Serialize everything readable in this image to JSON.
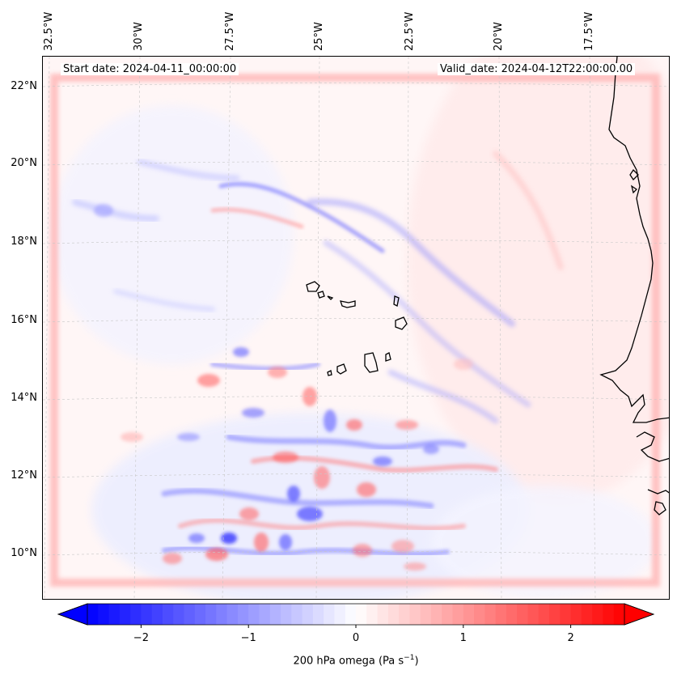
{
  "map": {
    "start_date": "Start date: 2024-04-11_00:00:00",
    "valid_date": "Valid_date: 2024-04-12T22:00:00.00",
    "longitude_labels": [
      "32.5°W",
      "30°W",
      "27.5°W",
      "25°W",
      "22.5°W",
      "20°W",
      "17.5°W"
    ],
    "latitude_labels": [
      "22°N",
      "20°N",
      "18°N",
      "16°N",
      "14°N",
      "12°N",
      "10°N"
    ],
    "coastline_color": "#000000",
    "gridline_color": "#c8c8c8"
  },
  "colorbar": {
    "title_prefix": "200 hPa omega (Pa s",
    "title_exponent": "−1",
    "title_suffix": ")",
    "tick_labels": [
      "−2",
      "−1",
      "0",
      "1",
      "2"
    ],
    "ticks": [
      -2,
      -1,
      0,
      1,
      2
    ],
    "min": -2.5,
    "max": 2.5,
    "extend": "both",
    "colormap": "bwr",
    "color_low": "#0000ff",
    "color_mid": "#ffffff",
    "color_high": "#ff0000"
  }
}
